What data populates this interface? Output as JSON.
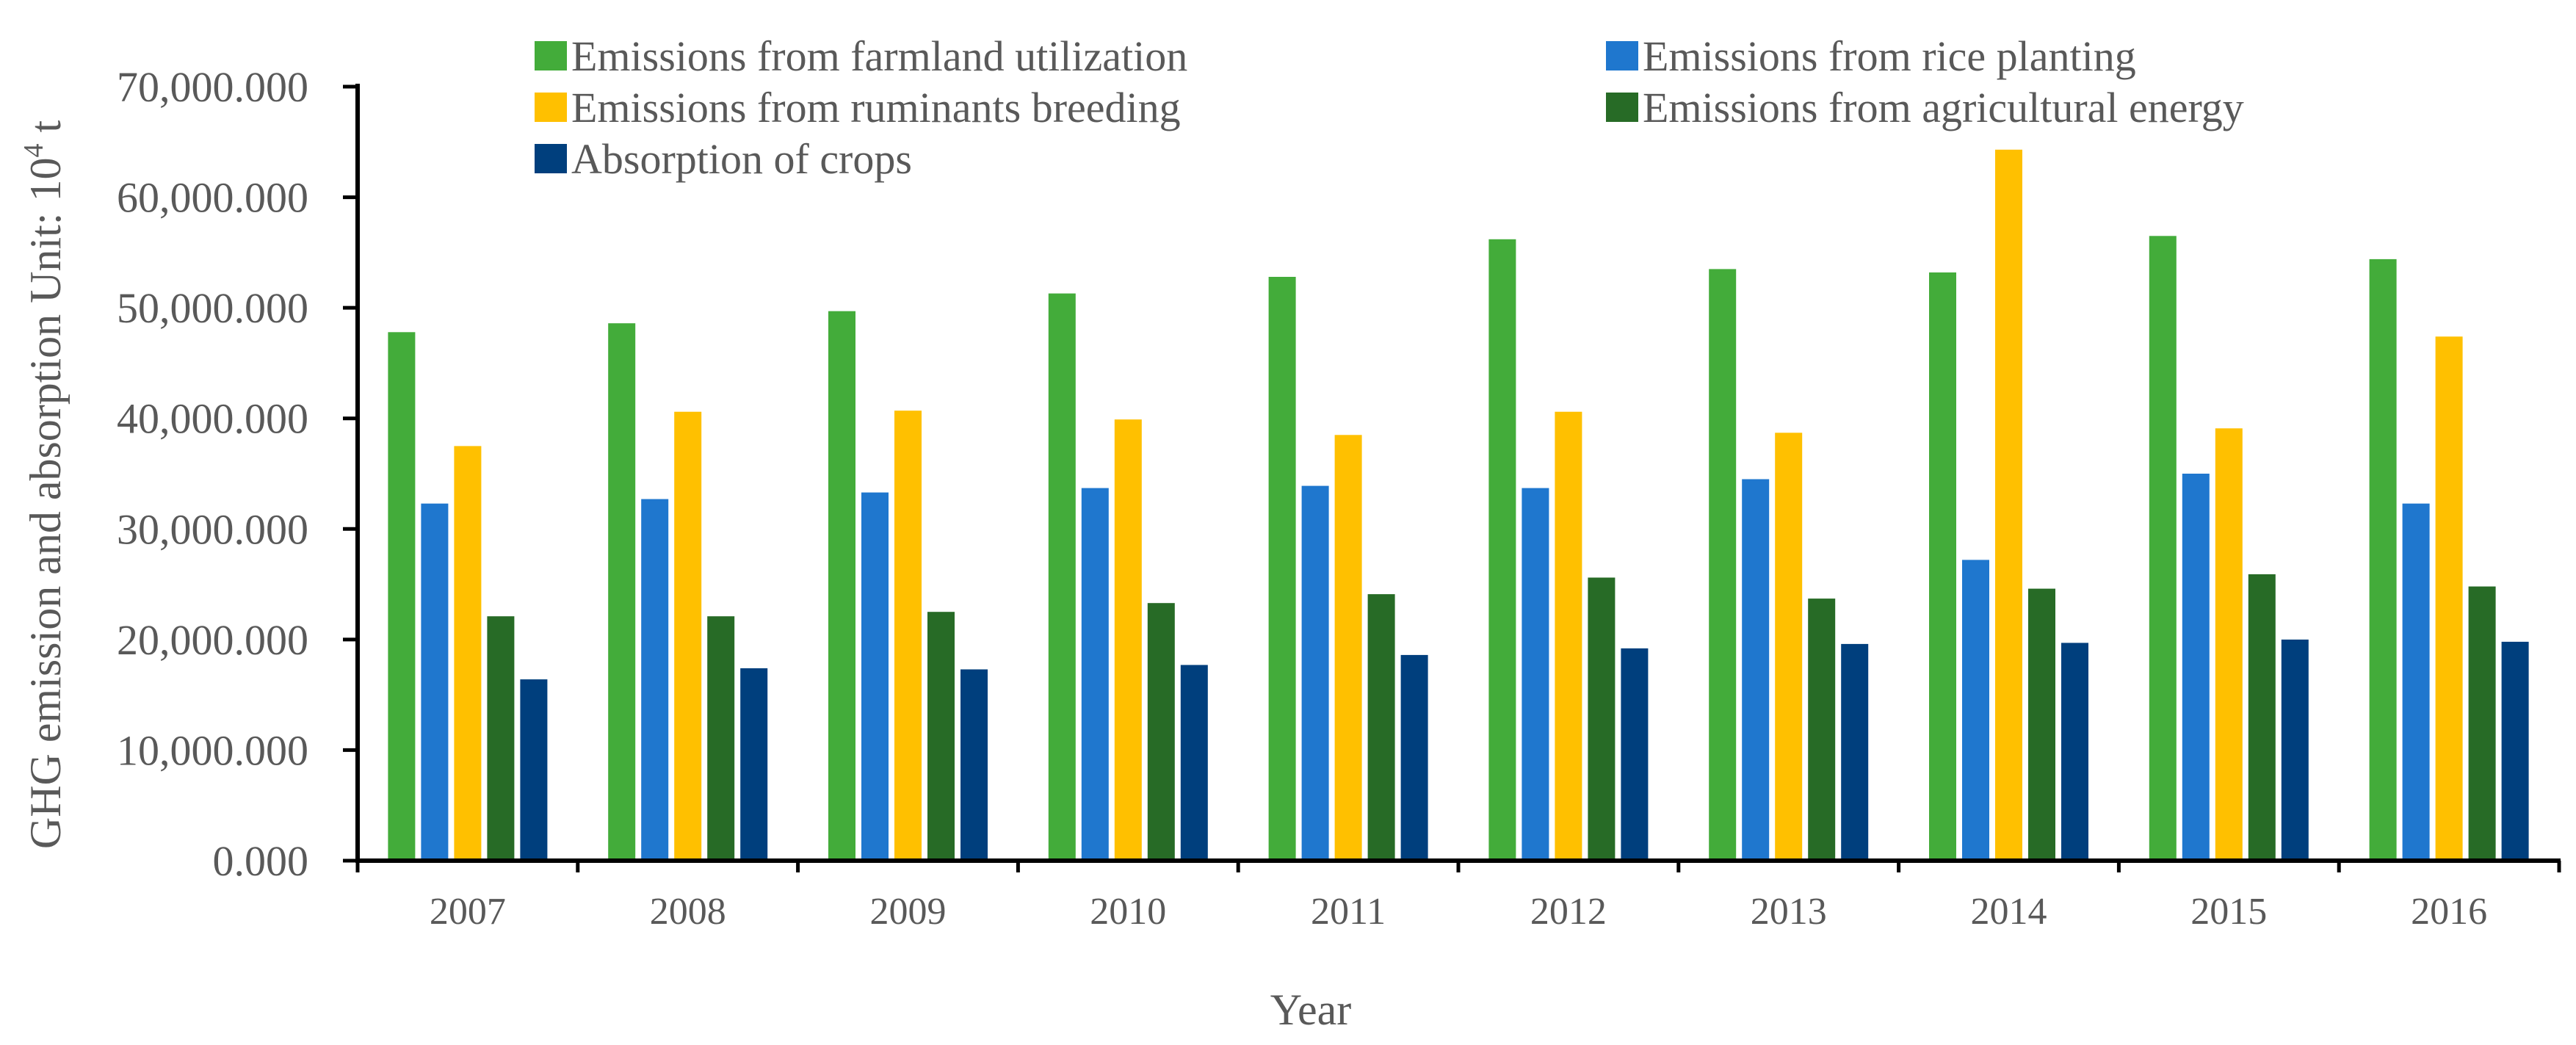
{
  "chart_data": {
    "type": "bar",
    "title": "",
    "xlabel": "Year",
    "ylabel": "GHG emission and absorption Unit: 10",
    "ylabel_sup": "4",
    "ylabel_suffix": " t",
    "ylim": [
      0,
      70000
    ],
    "yticks": [
      0,
      10000,
      20000,
      30000,
      40000,
      50000,
      60000,
      70000
    ],
    "ytick_labels": [
      "0.000",
      "10,000.000",
      "20,000.000",
      "30,000.000",
      "40,000.000",
      "50,000.000",
      "60,000.000",
      "70,000.000"
    ],
    "grid": false,
    "legend_position": "top",
    "categories": [
      "2007",
      "2008",
      "2009",
      "2010",
      "2011",
      "2012",
      "2013",
      "2014",
      "2015",
      "2016"
    ],
    "series": [
      {
        "name": "Emissions from farmland utilization",
        "color": "#43AC3A",
        "values": [
          47800,
          48600,
          49700,
          51300,
          52800,
          56200,
          53500,
          53200,
          56500,
          54400
        ]
      },
      {
        "name": "Emissions from rice planting",
        "color": "#1F77CE",
        "values": [
          32300,
          32700,
          33300,
          33700,
          33900,
          33700,
          34500,
          27200,
          35000,
          32300
        ]
      },
      {
        "name": "Emissions from ruminants breeding",
        "color": "#FFC000",
        "values": [
          37500,
          40600,
          40700,
          39900,
          38500,
          40600,
          38700,
          64300,
          39100,
          47400
        ]
      },
      {
        "name": "Emissions from agricultural energy",
        "color": "#276B26",
        "values": [
          22100,
          22100,
          22500,
          23300,
          24100,
          25600,
          23700,
          24600,
          25900,
          24800
        ]
      },
      {
        "name": "Absorption of crops",
        "color": "#003F7D",
        "values": [
          16400,
          17400,
          17300,
          17700,
          18600,
          19200,
          19600,
          19700,
          20000,
          19800
        ]
      }
    ]
  }
}
